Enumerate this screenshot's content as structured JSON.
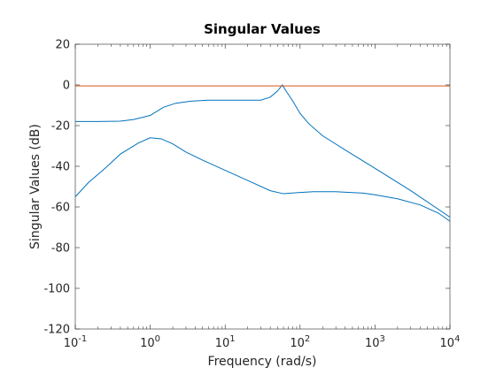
{
  "chart_data": {
    "type": "line",
    "title": "Singular Values",
    "xlabel": "Frequency (rad/s)",
    "ylabel": "Singular Values (dB)",
    "xscale": "log",
    "xlim": [
      0.1,
      10000
    ],
    "ylim": [
      -120,
      20
    ],
    "grid": false,
    "legend": "none",
    "x_ticks": [
      {
        "value": 0.1,
        "base": "10",
        "exp": "-1"
      },
      {
        "value": 1,
        "base": "10",
        "exp": "0"
      },
      {
        "value": 10,
        "base": "10",
        "exp": "1"
      },
      {
        "value": 100,
        "base": "10",
        "exp": "2"
      },
      {
        "value": 1000,
        "base": "10",
        "exp": "3"
      },
      {
        "value": 10000,
        "base": "10",
        "exp": "4"
      }
    ],
    "y_ticks": [
      {
        "value": 20,
        "label": "20"
      },
      {
        "value": 0,
        "label": "0"
      },
      {
        "value": -20,
        "label": "-20"
      },
      {
        "value": -40,
        "label": "-40"
      },
      {
        "value": -60,
        "label": "-60"
      },
      {
        "value": -80,
        "label": "-80"
      },
      {
        "value": -100,
        "label": "-100"
      },
      {
        "value": -120,
        "label": "-120"
      }
    ],
    "series": [
      {
        "color": "#0072bd",
        "points": [
          [
            0.1,
            -18
          ],
          [
            0.2,
            -18
          ],
          [
            0.4,
            -17.8
          ],
          [
            0.6,
            -17
          ],
          [
            1.0,
            -15
          ],
          [
            1.5,
            -11
          ],
          [
            2.2,
            -9
          ],
          [
            3.5,
            -8
          ],
          [
            6,
            -7.5
          ],
          [
            15,
            -7.5
          ],
          [
            30,
            -7.5
          ],
          [
            40,
            -6
          ],
          [
            50,
            -3
          ],
          [
            58,
            0
          ],
          [
            65,
            -3
          ],
          [
            80,
            -8
          ],
          [
            100,
            -14
          ],
          [
            130,
            -19
          ],
          [
            200,
            -25
          ],
          [
            400,
            -32
          ],
          [
            1000,
            -41
          ],
          [
            3000,
            -52
          ],
          [
            10000,
            -65
          ]
        ]
      },
      {
        "color": "#0072bd",
        "points": [
          [
            0.1,
            -55
          ],
          [
            0.15,
            -48
          ],
          [
            0.25,
            -41
          ],
          [
            0.4,
            -34
          ],
          [
            0.7,
            -28.5
          ],
          [
            1.0,
            -26
          ],
          [
            1.4,
            -26.5
          ],
          [
            2,
            -29
          ],
          [
            3,
            -33
          ],
          [
            5,
            -37
          ],
          [
            10,
            -42
          ],
          [
            20,
            -47
          ],
          [
            40,
            -52
          ],
          [
            60,
            -53.5
          ],
          [
            90,
            -53
          ],
          [
            150,
            -52.5
          ],
          [
            300,
            -52.5
          ],
          [
            700,
            -53.2
          ],
          [
            1000,
            -54
          ],
          [
            2000,
            -56
          ],
          [
            4000,
            -59
          ],
          [
            7000,
            -63
          ],
          [
            10000,
            -67
          ]
        ]
      },
      {
        "color": "#d95319",
        "points": [
          [
            0.1,
            -0.5
          ],
          [
            10000,
            -0.5
          ]
        ]
      }
    ]
  }
}
